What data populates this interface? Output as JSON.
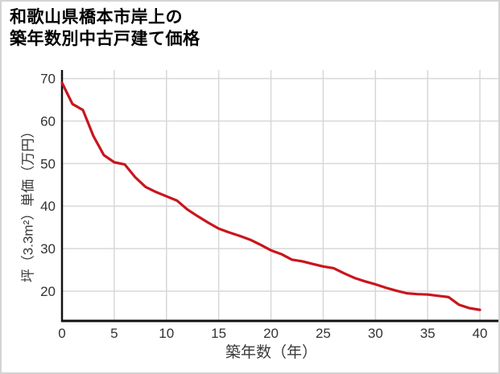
{
  "header": {
    "title": "和歌山県橋本市岸上の\n築年数別中古戸建て価格"
  },
  "chart_data": {
    "type": "line",
    "title": "和歌山県橋本市岸上の築年数別中古戸建て価格",
    "xlabel": "築年数（年）",
    "ylabel": "坪（3.3m²）単価（万円）",
    "x": [
      0,
      1,
      2,
      3,
      4,
      5,
      6,
      7,
      8,
      9,
      10,
      11,
      12,
      13,
      14,
      15,
      16,
      17,
      18,
      19,
      20,
      21,
      22,
      23,
      24,
      25,
      26,
      27,
      28,
      29,
      30,
      31,
      32,
      33,
      34,
      35,
      36,
      37,
      38,
      39,
      40
    ],
    "values": [
      69.0,
      64.0,
      62.6,
      56.5,
      52.0,
      50.3,
      49.8,
      46.8,
      44.5,
      43.3,
      42.3,
      41.3,
      39.2,
      37.6,
      36.1,
      34.7,
      33.8,
      33.0,
      32.1,
      30.9,
      29.6,
      28.7,
      27.4,
      27.0,
      26.4,
      25.8,
      25.4,
      24.2,
      23.1,
      22.3,
      21.6,
      20.8,
      20.1,
      19.5,
      19.3,
      19.2,
      18.9,
      18.6,
      16.8,
      16.0,
      15.6
    ],
    "xticks": [
      0,
      5,
      10,
      15,
      20,
      25,
      30,
      35,
      40
    ],
    "yticks": [
      20,
      30,
      40,
      50,
      60,
      70
    ],
    "xlim": [
      0,
      42
    ],
    "ylim": [
      13,
      72
    ],
    "grid": true,
    "legend": "none",
    "line_color": "#c9151d"
  },
  "colors": {
    "grid": "#d8d8d8",
    "axis": "#111111",
    "tick_text": "#333333",
    "border": "#d4d4d4",
    "background": "#ffffff"
  }
}
